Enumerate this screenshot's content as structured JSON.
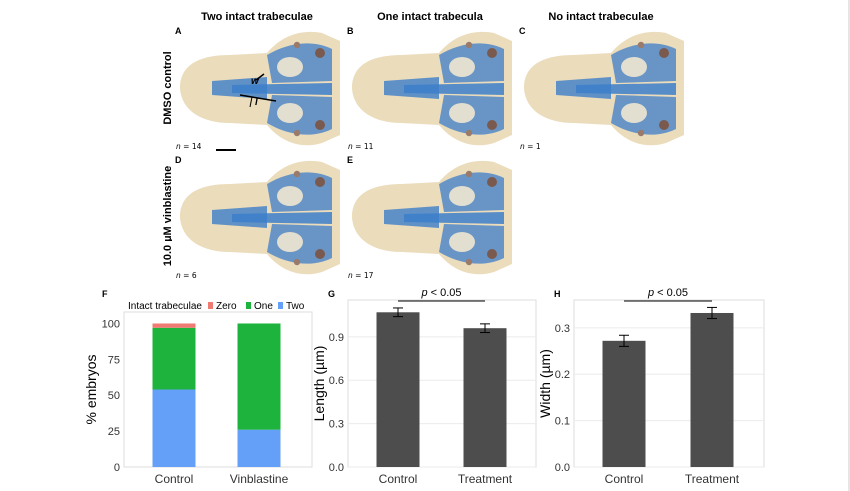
{
  "columns": [
    "Two intact trabeculae",
    "One intact trabecula",
    "No intact trabeculae"
  ],
  "rows": [
    "DMSO control",
    "10.0 µM vinblastine"
  ],
  "panels": [
    {
      "letter": "A",
      "n_label": "n",
      "n_value": "= 14",
      "annot_w": "w",
      "annot_l": "l"
    },
    {
      "letter": "B",
      "n_label": "n",
      "n_value": "= 11"
    },
    {
      "letter": "C",
      "n_label": "n",
      "n_value": "= 1"
    },
    {
      "letter": "D",
      "n_label": "n",
      "n_value": "= 6"
    },
    {
      "letter": "E",
      "n_label": "n",
      "n_value": "= 17"
    }
  ],
  "colors": {
    "zero": "#f07b72",
    "one": "#1db33d",
    "two": "#64a0f7",
    "bar": "#4d4d4d",
    "cartilage": "#3c7ec9"
  },
  "chart_data": [
    {
      "id": "F",
      "type": "bar",
      "stacked": true,
      "categories": [
        "Control",
        "Vinblastine"
      ],
      "series": [
        {
          "name": "Zero",
          "values": [
            3,
            0
          ]
        },
        {
          "name": "One",
          "values": [
            43,
            74
          ]
        },
        {
          "name": "Two",
          "values": [
            54,
            26
          ]
        }
      ],
      "ylabel": "% embryos",
      "ylim": [
        0,
        100
      ],
      "yticks": [
        0,
        25,
        50,
        75,
        100
      ],
      "legend_title": "Intact trabeculae",
      "legend_position": "top"
    },
    {
      "id": "G",
      "type": "bar",
      "categories": [
        "Control",
        "Treatment"
      ],
      "values": [
        1.07,
        0.96
      ],
      "errors": [
        0.03,
        0.03
      ],
      "ylabel": "Length (µm)",
      "ylim": [
        0,
        1.1
      ],
      "yticks": [
        0.0,
        0.3,
        0.6,
        0.9
      ],
      "annotation_p": "p",
      "annotation_rest": " < 0.05"
    },
    {
      "id": "H",
      "type": "bar",
      "categories": [
        "Control",
        "Treatment"
      ],
      "values": [
        0.272,
        0.332
      ],
      "errors": [
        0.012,
        0.012
      ],
      "ylabel": "Width (µm)",
      "ylim": [
        0,
        0.345
      ],
      "yticks": [
        0.0,
        0.1,
        0.2,
        0.3
      ],
      "annotation_p": "p",
      "annotation_rest": " < 0.05"
    }
  ]
}
